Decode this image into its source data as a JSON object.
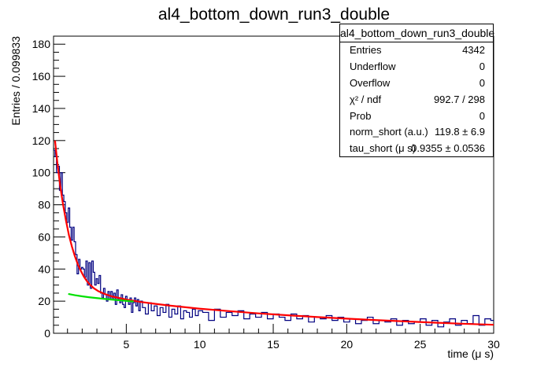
{
  "chart_data": {
    "type": "histogram",
    "title": "al4_bottom_down_run3_double",
    "xlabel": "time (μ s)",
    "ylabel": "Entries / 0.099833",
    "xlim": [
      0.05,
      30.0
    ],
    "ylim": [
      0,
      185
    ],
    "x_ticks": [
      5,
      10,
      15,
      20,
      25,
      30
    ],
    "y_ticks": [
      0,
      20,
      40,
      60,
      80,
      100,
      120,
      140,
      160,
      180
    ],
    "grid": false,
    "legend": "none",
    "bin_width": 0.099833,
    "histogram_bins": [
      [
        0.05,
        114
      ],
      [
        0.15,
        110
      ],
      [
        0.25,
        100
      ],
      [
        0.35,
        104
      ],
      [
        0.45,
        89
      ],
      [
        0.55,
        100
      ],
      [
        0.65,
        86
      ],
      [
        0.75,
        82
      ],
      [
        0.85,
        75
      ],
      [
        0.95,
        69
      ],
      [
        1.05,
        78
      ],
      [
        1.15,
        66
      ],
      [
        1.25,
        58
      ],
      [
        1.35,
        66
      ],
      [
        1.45,
        57
      ],
      [
        1.55,
        49
      ],
      [
        1.65,
        37
      ],
      [
        1.75,
        46
      ],
      [
        1.85,
        40
      ],
      [
        1.95,
        41
      ],
      [
        2.05,
        40
      ],
      [
        2.15,
        35
      ],
      [
        2.25,
        45
      ],
      [
        2.35,
        30
      ],
      [
        2.45,
        44
      ],
      [
        2.55,
        28
      ],
      [
        2.65,
        45
      ],
      [
        2.75,
        38
      ],
      [
        2.85,
        30
      ],
      [
        2.95,
        34
      ],
      [
        3.05,
        31
      ],
      [
        3.15,
        36
      ],
      [
        3.25,
        25
      ],
      [
        3.35,
        22
      ],
      [
        3.45,
        28
      ],
      [
        3.55,
        24
      ],
      [
        3.65,
        20
      ],
      [
        3.75,
        26
      ],
      [
        3.85,
        21
      ],
      [
        3.95,
        26
      ],
      [
        4.05,
        21
      ],
      [
        4.15,
        25
      ],
      [
        4.25,
        18
      ],
      [
        4.35,
        27
      ],
      [
        4.45,
        21
      ],
      [
        4.55,
        19
      ],
      [
        4.65,
        24
      ],
      [
        4.75,
        18
      ],
      [
        4.85,
        16
      ],
      [
        4.95,
        23
      ],
      [
        5.05,
        20
      ],
      [
        5.15,
        18
      ],
      [
        5.25,
        22
      ],
      [
        5.35,
        13
      ],
      [
        5.45,
        19
      ],
      [
        5.55,
        22
      ],
      [
        5.65,
        17
      ],
      [
        5.75,
        21
      ],
      [
        5.85,
        14
      ],
      [
        5.95,
        20
      ],
      [
        6.1,
        16
      ],
      [
        6.3,
        12
      ],
      [
        6.5,
        19
      ],
      [
        6.7,
        14
      ],
      [
        6.9,
        17
      ],
      [
        7.1,
        11
      ],
      [
        7.3,
        16
      ],
      [
        7.5,
        13
      ],
      [
        7.7,
        18
      ],
      [
        7.9,
        10
      ],
      [
        8.1,
        15
      ],
      [
        8.3,
        12
      ],
      [
        8.5,
        17
      ],
      [
        8.7,
        9
      ],
      [
        8.9,
        14
      ],
      [
        9.1,
        13
      ],
      [
        9.3,
        10
      ],
      [
        9.5,
        15
      ],
      [
        9.7,
        11
      ],
      [
        9.9,
        14
      ],
      [
        10.2,
        13
      ],
      [
        10.6,
        8
      ],
      [
        11.0,
        15
      ],
      [
        11.4,
        10
      ],
      [
        11.8,
        13
      ],
      [
        12.2,
        11
      ],
      [
        12.6,
        14
      ],
      [
        13.0,
        9
      ],
      [
        13.4,
        12
      ],
      [
        13.8,
        10
      ],
      [
        14.2,
        13
      ],
      [
        14.6,
        9
      ],
      [
        15.0,
        12
      ],
      [
        15.4,
        10
      ],
      [
        15.8,
        8
      ],
      [
        16.2,
        12
      ],
      [
        16.6,
        9
      ],
      [
        17.0,
        11
      ],
      [
        17.4,
        7
      ],
      [
        17.8,
        10
      ],
      [
        18.2,
        9
      ],
      [
        18.6,
        11
      ],
      [
        19.0,
        8
      ],
      [
        19.4,
        10
      ],
      [
        19.8,
        7
      ],
      [
        20.2,
        9
      ],
      [
        20.6,
        6
      ],
      [
        21.0,
        8
      ],
      [
        21.4,
        10
      ],
      [
        21.8,
        6
      ],
      [
        22.2,
        8
      ],
      [
        22.6,
        7
      ],
      [
        23.0,
        9
      ],
      [
        23.4,
        5
      ],
      [
        23.8,
        8
      ],
      [
        24.2,
        6
      ],
      [
        24.6,
        7
      ],
      [
        25.0,
        9
      ],
      [
        25.4,
        5
      ],
      [
        25.8,
        8
      ],
      [
        26.2,
        4
      ],
      [
        26.6,
        7
      ],
      [
        27.0,
        9
      ],
      [
        27.4,
        5
      ],
      [
        27.8,
        8
      ],
      [
        28.2,
        6
      ],
      [
        28.6,
        11
      ],
      [
        29.0,
        5
      ],
      [
        29.4,
        9
      ],
      [
        29.8,
        8
      ]
    ],
    "series": [
      {
        "color": "#000080",
        "points": [
          [
            0.1,
            112
          ],
          [
            0.3,
            100
          ],
          [
            0.5,
            94
          ],
          [
            0.7,
            84
          ],
          [
            0.9,
            74
          ],
          [
            1.1,
            72
          ],
          [
            1.3,
            62
          ],
          [
            1.5,
            54
          ],
          [
            1.7,
            42
          ],
          [
            1.9,
            40
          ],
          [
            2.1,
            38
          ],
          [
            2.3,
            37
          ],
          [
            2.5,
            36
          ],
          [
            2.7,
            40
          ],
          [
            2.9,
            32
          ],
          [
            3.1,
            33
          ],
          [
            3.3,
            24
          ],
          [
            3.5,
            26
          ],
          [
            3.7,
            23
          ],
          [
            3.9,
            24
          ],
          [
            4.2,
            22
          ],
          [
            4.6,
            20
          ],
          [
            5.0,
            21
          ],
          [
            5.5,
            19
          ],
          [
            6.0,
            18
          ],
          [
            7.0,
            15
          ],
          [
            8.0,
            14
          ],
          [
            9.0,
            13
          ],
          [
            10,
            12
          ],
          [
            12,
            11
          ],
          [
            14,
            11
          ],
          [
            16,
            10
          ],
          [
            18,
            9
          ],
          [
            20,
            8
          ],
          [
            22,
            7
          ],
          [
            24,
            7
          ],
          [
            26,
            6
          ],
          [
            28,
            7
          ],
          [
            30,
            7
          ]
        ]
      },
      {
        "color": "#ff0000",
        "points": [
          [
            0.15,
            120
          ],
          [
            0.3,
            107
          ],
          [
            0.5,
            92
          ],
          [
            0.7,
            80
          ],
          [
            0.9,
            70
          ],
          [
            1.1,
            61
          ],
          [
            1.3,
            54
          ],
          [
            1.5,
            48
          ],
          [
            1.7,
            43
          ],
          [
            1.9,
            39
          ],
          [
            2.1,
            35.5
          ],
          [
            2.3,
            32.7
          ],
          [
            2.5,
            30.5
          ],
          [
            2.8,
            28
          ],
          [
            3.1,
            26.2
          ],
          [
            3.5,
            24.6
          ],
          [
            4,
            23
          ],
          [
            5,
            21
          ],
          [
            6,
            19.5
          ],
          [
            7,
            18.3
          ],
          [
            8,
            17.2
          ],
          [
            10,
            15.3
          ],
          [
            12,
            13.8
          ],
          [
            14,
            12.4
          ],
          [
            16,
            11.2
          ],
          [
            18,
            10.1
          ],
          [
            20,
            9.1
          ],
          [
            22,
            8.2
          ],
          [
            24,
            7.4
          ],
          [
            26,
            6.6
          ],
          [
            28,
            5.9
          ],
          [
            30,
            5.3
          ]
        ]
      },
      {
        "color": "#00e000",
        "points": [
          [
            1.05,
            24.5
          ],
          [
            1.5,
            23.7
          ],
          [
            2,
            23.0
          ],
          [
            2.5,
            22.4
          ],
          [
            3,
            21.9
          ],
          [
            3.5,
            21.4
          ],
          [
            4,
            21.0
          ],
          [
            4.5,
            20.6
          ],
          [
            5,
            20.2
          ],
          [
            5.5,
            19.8
          ]
        ]
      }
    ]
  },
  "stats": {
    "title": "al4_bottom_down_run3_double",
    "rows": [
      {
        "label": "Entries",
        "value": "4342"
      },
      {
        "label": "Underflow",
        "value": "0"
      },
      {
        "label": "Overflow",
        "value": "0"
      },
      {
        "label": "χ² / ndf",
        "value": "992.7 / 298"
      },
      {
        "label": "Prob",
        "value": "0"
      },
      {
        "label": "norm_short (a.u.)",
        "value": "119.8 ± 6.9"
      },
      {
        "label": "tau_short (μ s)",
        "value": "0.9355 ± 0.0536"
      }
    ]
  }
}
